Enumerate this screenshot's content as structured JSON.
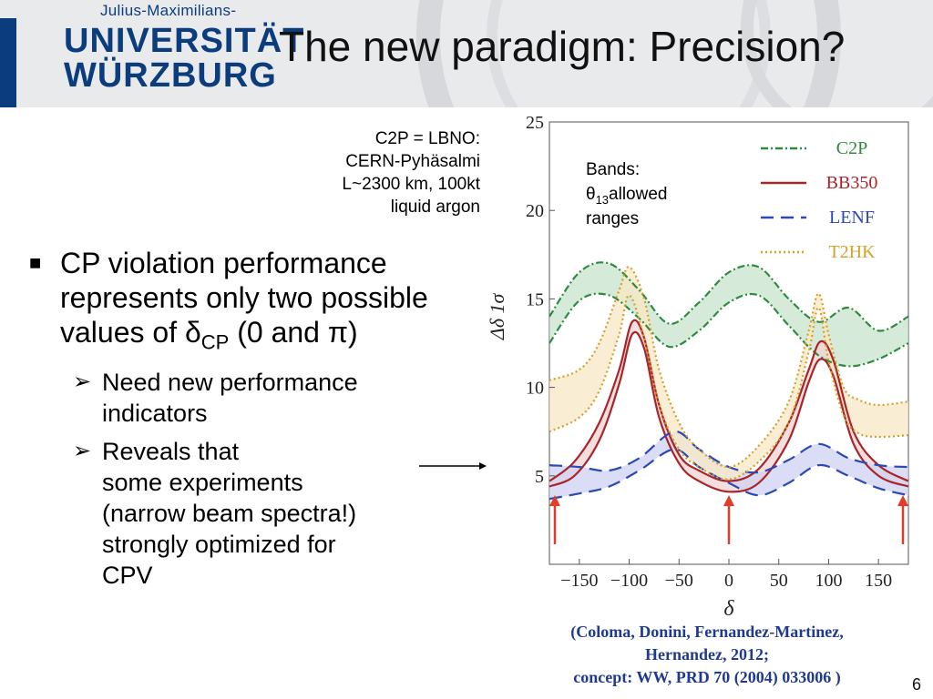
{
  "header": {
    "logo_top": "Julius-Maximilians-",
    "logo_line1": "UNIVERSITÄT",
    "logo_line2": "WÜRZBURG",
    "title": "The new paradigm: Precision?"
  },
  "info_lines": [
    "C2P = LBNO:",
    "CERN-Pyhäsalmi",
    "L~2300 km, 100kt",
    "liquid argon"
  ],
  "bullets": {
    "main_text": "CP violation performance represents only two possible values of",
    "main_symbol": "δ",
    "main_sub": "CP",
    "main_tail": "(0 and π)",
    "sub1": "Need new performance indicators",
    "sub2_line1": "Reveals that",
    "sub2_line2": "some experiments",
    "sub2_line3": "(narrow beam spectra!)",
    "sub2_line4": "strongly optimized for",
    "sub2_line5": "CPV"
  },
  "citation": {
    "line1": "(Coloma, Donini, Fernandez-Martinez,",
    "line2": "Hernandez, 2012;",
    "line3": "concept: WW, PRD 70 (2004) 033006 )"
  },
  "page_number": "6",
  "chart_data": {
    "type": "line",
    "xlabel": "δ",
    "ylabel": "Δδ   1σ",
    "xlim": [
      -180,
      180
    ],
    "ylim": [
      0,
      25
    ],
    "xticks": [
      -150,
      -100,
      -50,
      0,
      50,
      100,
      150
    ],
    "yticks": [
      5,
      10,
      15,
      20,
      25
    ],
    "annotation": {
      "line1": "Bands:",
      "theta": "θ",
      "theta_sub": "13",
      "line2_tail": "allowed",
      "line3": "ranges"
    },
    "arrows_at": [
      -180,
      0,
      180
    ],
    "arrow_color": "#e23b2a",
    "series": [
      {
        "name": "C2P",
        "color": "#2e8b3e",
        "fill": "#c8e3cd",
        "style": "dash-dot",
        "x": [
          -180,
          -150,
          -120,
          -90,
          -60,
          -30,
          0,
          30,
          60,
          90,
          120,
          150,
          180
        ],
        "upper": [
          14,
          16.5,
          17,
          15.5,
          13.6,
          14.8,
          16.5,
          16.8,
          15,
          13.7,
          14.5,
          13.2,
          14
        ],
        "lower": [
          12.5,
          14.9,
          15.2,
          13.9,
          12.3,
          13.2,
          14.8,
          15.2,
          13.5,
          11.8,
          11.2,
          11.6,
          12.5
        ]
      },
      {
        "name": "BB350",
        "color": "#a8252a",
        "fill": "#f2d3d3",
        "style": "solid",
        "x": [
          -180,
          -155,
          -130,
          -110,
          -97,
          -85,
          -70,
          -50,
          -30,
          0,
          30,
          60,
          80,
          92,
          105,
          125,
          150,
          180
        ],
        "upper": [
          4.7,
          5.8,
          8,
          11,
          13.7,
          12.8,
          9,
          6.2,
          5.3,
          4.7,
          5.4,
          8,
          11,
          12.6,
          11.5,
          7.5,
          5.6,
          4.7
        ],
        "lower": [
          4.4,
          5,
          7,
          10.2,
          13,
          12.2,
          8.3,
          5.7,
          4.7,
          4.1,
          4.6,
          7,
          10.3,
          11.6,
          10.6,
          6.8,
          5,
          4.4
        ]
      },
      {
        "name": "LENF",
        "color": "#2b48b5",
        "fill": "#cdd1f1",
        "style": "dash",
        "x": [
          -180,
          -150,
          -120,
          -90,
          -55,
          -30,
          0,
          30,
          60,
          90,
          120,
          150,
          180
        ],
        "upper": [
          5.6,
          5.5,
          5.3,
          6,
          7.5,
          6.5,
          5.5,
          5.2,
          5.9,
          6.8,
          6,
          5.6,
          5.5
        ],
        "lower": [
          3.7,
          4,
          4.4,
          5.3,
          6.5,
          5.5,
          4.6,
          3.9,
          4.6,
          5.6,
          5,
          4.3,
          3.9
        ]
      },
      {
        "name": "T2HK",
        "color": "#d4a02a",
        "fill": "#f7e8c4",
        "style": "dot",
        "x": [
          -180,
          -150,
          -130,
          -110,
          -100,
          -85,
          -70,
          -50,
          -30,
          0,
          30,
          60,
          80,
          90,
          100,
          115,
          130,
          150,
          180
        ],
        "upper": [
          10.4,
          11,
          12.5,
          15.5,
          16.8,
          15,
          11,
          8,
          6.5,
          5.5,
          6.7,
          9.2,
          13.2,
          15.3,
          13,
          10,
          9.3,
          9,
          9.2
        ],
        "lower": [
          7.5,
          8.3,
          9.8,
          13,
          15.2,
          12.8,
          9,
          6.5,
          5.5,
          4.8,
          5.8,
          8,
          12,
          14.5,
          11.5,
          8.4,
          7.4,
          7.2,
          7.3
        ]
      }
    ]
  }
}
